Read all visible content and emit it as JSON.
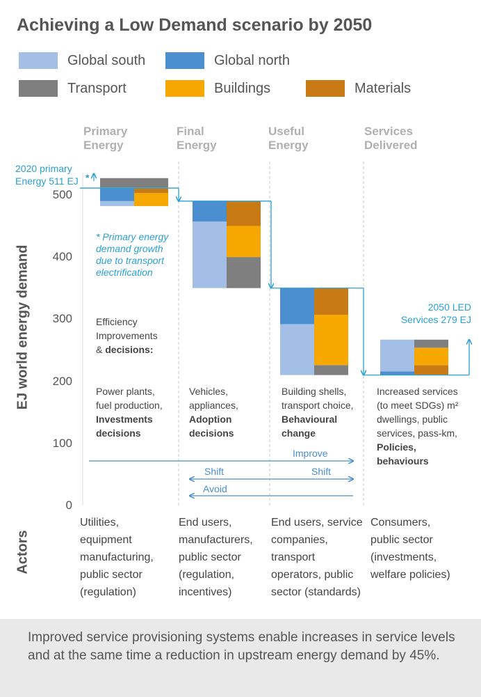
{
  "title": "Achieving a Low Demand scenario by 2050",
  "legend": [
    {
      "label": "Global south",
      "color": "#a4bfe6"
    },
    {
      "label": "Global north",
      "color": "#4c8fd1"
    },
    {
      "label": "Transport",
      "color": "#7f7f7f"
    },
    {
      "label": "Buildings",
      "color": "#f7a800"
    },
    {
      "label": "Materials",
      "color": "#c87b14"
    }
  ],
  "stages": [
    {
      "line1": "Primary",
      "line2": "Energy"
    },
    {
      "line1": "Final",
      "line2": "Energy"
    },
    {
      "line1": "Useful",
      "line2": "Energy"
    },
    {
      "line1": "Services",
      "line2": "Delivered"
    }
  ],
  "y_axis_label": "EJ world energy demand",
  "actors_label": "Actors",
  "callouts": {
    "primary_line1": "2020 primary",
    "primary_line2": "Energy 511 EJ",
    "primary_asterisk": "*",
    "led_line1": "2050 LED",
    "led_line2": "Services 279 EJ"
  },
  "asterisk_note": [
    "* Primary energy",
    "demand growth",
    "due to transport",
    "electrification"
  ],
  "efficiency": [
    "Efficiency",
    "Improvements",
    "& ",
    "decisions:"
  ],
  "descriptions": [
    {
      "lines": [
        "Power plants,",
        "fuel production,"
      ],
      "bold": [
        "Investments",
        "decisions"
      ]
    },
    {
      "lines": [
        "Vehicles,",
        "appliances,"
      ],
      "bold": [
        "Adoption",
        "decisions"
      ]
    },
    {
      "lines": [
        "Building shells,",
        "transport choice,"
      ],
      "bold": [
        "Behavioural",
        "change"
      ]
    },
    {
      "lines": [
        "Increased services",
        "(to meet SDGs) m²",
        "dwellings, public",
        "services, pass-km,"
      ],
      "bold": [
        "Policies,",
        "behaviours"
      ]
    }
  ],
  "arrows": {
    "improve": "Improve",
    "shift_left": "Shift",
    "shift_right": "Shift",
    "avoid": "Avoid"
  },
  "actors": [
    [
      "Utilities,",
      "equipment",
      "manufacturing,",
      "public sector",
      "(regulation)"
    ],
    [
      "End users,",
      "manufacturers,",
      "public sector",
      "(regulation,",
      "incentives)"
    ],
    [
      "End users, service",
      "companies,",
      "transport",
      "operators, public",
      "sector (standards)"
    ],
    [
      "Consumers,",
      "public sector",
      "(investments,",
      "welfare policies)"
    ]
  ],
  "footer": "Improved service provisioning systems enable increases in service levels and at the same time a reduction in upstream energy demand by 45%.",
  "chart_data": {
    "type": "bar",
    "subtype": "stacked",
    "ylim": [
      0,
      520
    ],
    "yticks": [
      0,
      100,
      200,
      300,
      400,
      500
    ],
    "categories": [
      "Primary Energy",
      "Final Energy",
      "Useful Energy",
      "Services Delivered"
    ],
    "stacks": [
      {
        "category": "Primary Energy",
        "left": [
          {
            "series": "Global south",
            "from": 482,
            "to": 490
          },
          {
            "series": "Global north",
            "from": 490,
            "to": 512
          },
          {
            "series": "Transport",
            "from": 512,
            "to": 527
          }
        ],
        "right": [
          {
            "series": "Buildings",
            "from": 482,
            "to": 503
          },
          {
            "series": "Materials",
            "from": 503,
            "to": 512
          },
          {
            "series": "Transport",
            "from": 512,
            "to": 527
          }
        ]
      },
      {
        "category": "Final Energy",
        "left": [
          {
            "series": "Global south",
            "from": 350,
            "to": 457
          },
          {
            "series": "Global north",
            "from": 457,
            "to": 490
          }
        ],
        "right": [
          {
            "series": "Transport",
            "from": 350,
            "to": 400
          },
          {
            "series": "Buildings",
            "from": 400,
            "to": 450
          },
          {
            "series": "Materials",
            "from": 450,
            "to": 490
          }
        ]
      },
      {
        "category": "Useful Energy",
        "left": [
          {
            "series": "Global south",
            "from": 210,
            "to": 292
          },
          {
            "series": "Global north",
            "from": 292,
            "to": 350
          }
        ],
        "right": [
          {
            "series": "Transport",
            "from": 210,
            "to": 226
          },
          {
            "series": "Buildings",
            "from": 226,
            "to": 307
          },
          {
            "series": "Materials",
            "from": 307,
            "to": 350
          }
        ]
      },
      {
        "category": "Services Delivered",
        "left": [
          {
            "series": "Global north",
            "from": 210,
            "to": 216
          },
          {
            "series": "Global south",
            "from": 216,
            "to": 267
          }
        ],
        "right": [
          {
            "series": "Materials",
            "from": 210,
            "to": 226
          },
          {
            "series": "Buildings",
            "from": 226,
            "to": 254
          },
          {
            "series": "Transport",
            "from": 254,
            "to": 267
          }
        ]
      }
    ],
    "reference_values": {
      "primary_2020": 511,
      "led_services_2050": 279
    }
  }
}
